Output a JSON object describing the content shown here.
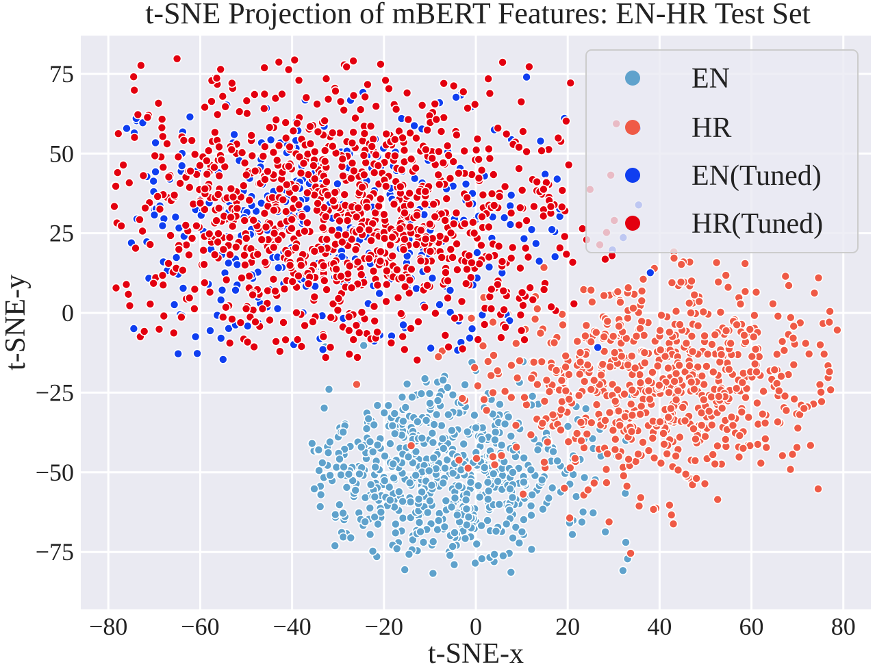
{
  "chart_data": {
    "type": "scatter",
    "title": "t-SNE Projection of mBERT Features: EN-HR Test Set",
    "xlabel": "t-SNE-x",
    "ylabel": "t-SNE-y",
    "xlim": [
      -86,
      86
    ],
    "ylim": [
      -93,
      87
    ],
    "xticks": [
      -80,
      -60,
      -40,
      -20,
      0,
      20,
      40,
      60,
      80
    ],
    "yticks": [
      -75,
      -50,
      -25,
      0,
      25,
      50,
      75
    ],
    "grid": true,
    "legend_position": "top-right",
    "series": [
      {
        "name": "EN",
        "color": "#5fa2cc"
      },
      {
        "name": "HR",
        "color": "#ef5a46"
      },
      {
        "name": "EN(Tuned)",
        "color": "#0f3ef0"
      },
      {
        "name": "HR(Tuned)",
        "color": "#e3000f"
      }
    ],
    "clusters": [
      {
        "series": "EN",
        "center": [
          -8,
          -50
        ],
        "spread": [
          16,
          13
        ],
        "count": 650,
        "x_range": [
          -36,
          45
        ],
        "y_range": [
          -86,
          -3
        ]
      },
      {
        "series": "HR",
        "center": [
          40,
          -22
        ],
        "spread": [
          18,
          17
        ],
        "count": 700,
        "x_range": [
          -30,
          80
        ],
        "y_range": [
          -84,
          20
        ]
      },
      {
        "series": "EN(Tuned)",
        "center": [
          -30,
          28
        ],
        "spread": [
          26,
          22
        ],
        "count": 360,
        "x_range": [
          -78,
          52
        ],
        "y_range": [
          -15,
          80
        ]
      },
      {
        "series": "HR(Tuned)",
        "center": [
          -28,
          30
        ],
        "spread": [
          25,
          21
        ],
        "count": 1050,
        "x_range": [
          -79,
          32
        ],
        "y_range": [
          -15,
          80
        ]
      }
    ]
  },
  "labels": {
    "tick_prefix_negative": "−"
  }
}
